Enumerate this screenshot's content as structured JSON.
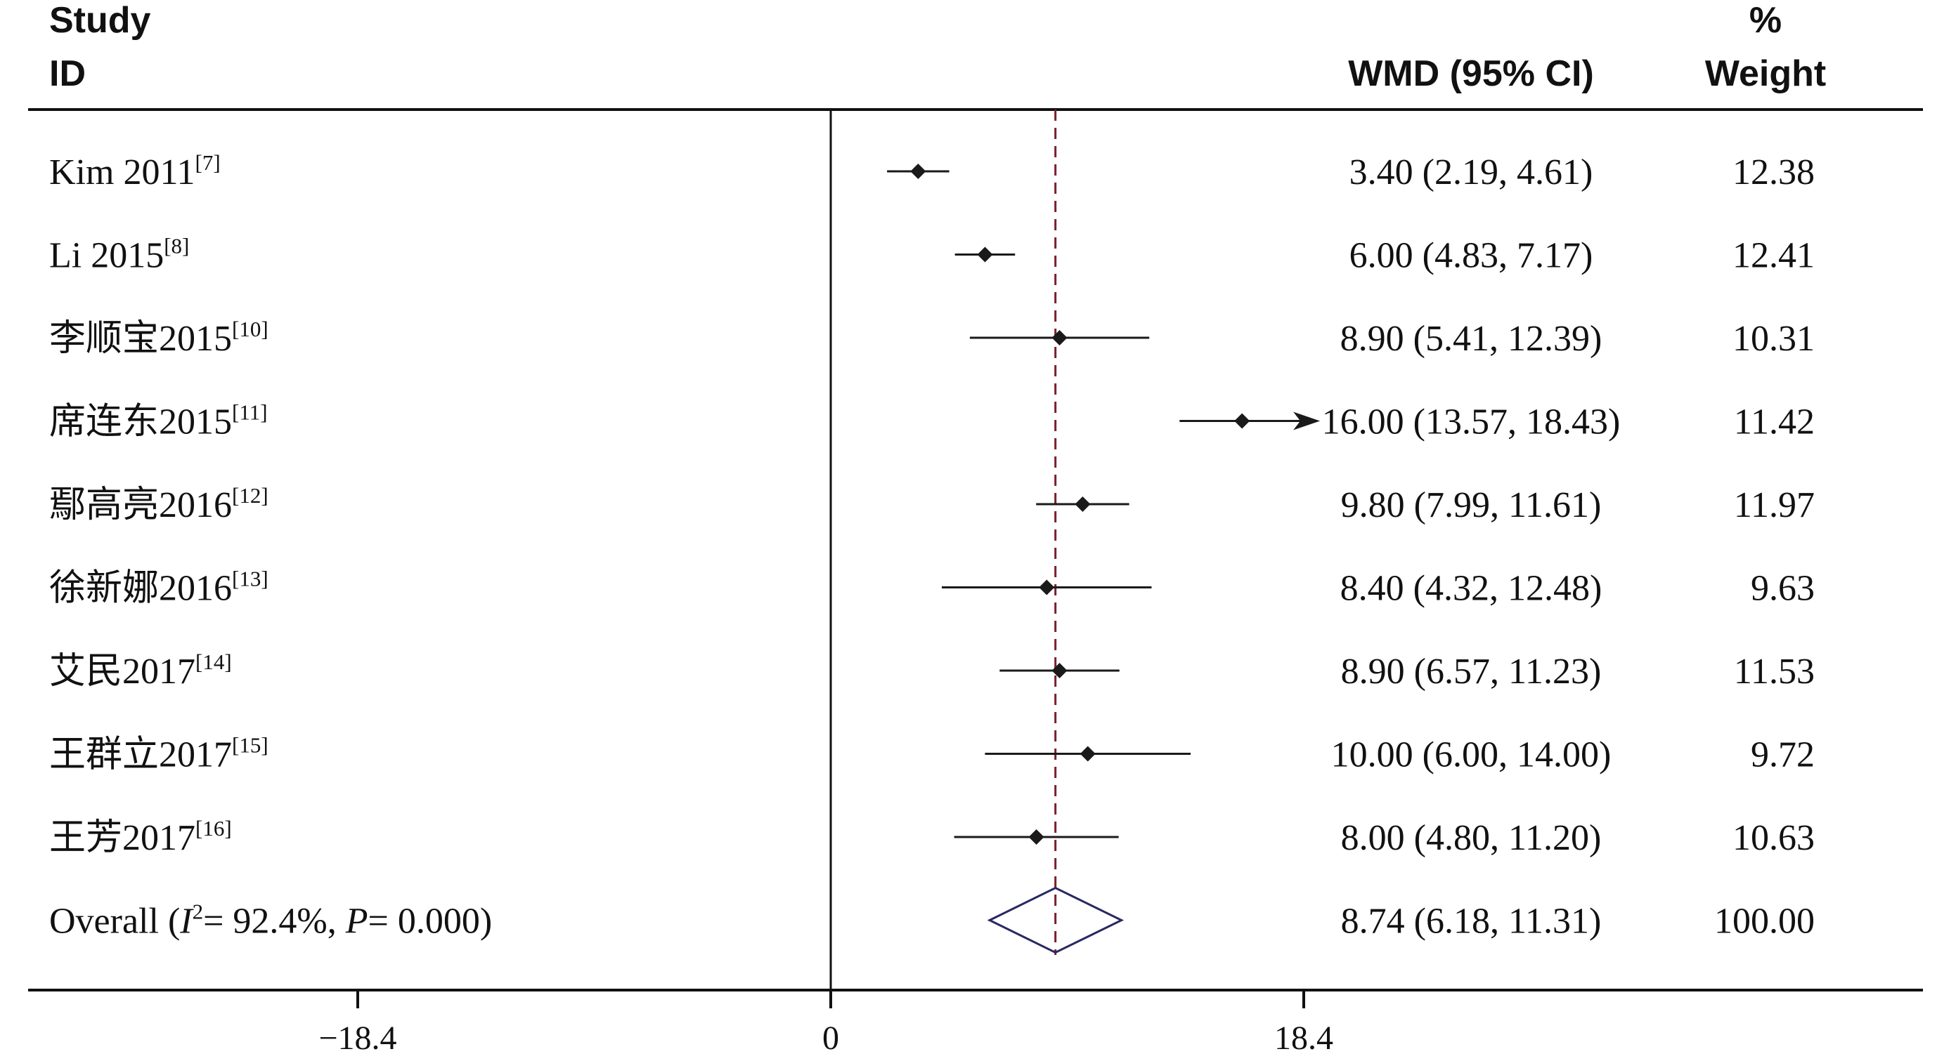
{
  "header": {
    "study": "Study",
    "id": "ID",
    "effect": "WMD (95% CI)",
    "weight_top": "%",
    "weight_bottom": "Weight"
  },
  "chart_data": {
    "type": "forest",
    "xlim": [
      -18.4,
      18.4
    ],
    "x_ticks": [
      "−18.4",
      "0",
      "18.4"
    ],
    "x_tick_values": [
      -18.4,
      0,
      18.4
    ],
    "reference_line": 0,
    "pooled_line": 8.74,
    "colors": {
      "marker": "#1a1a1a",
      "line": "#1a1a1a",
      "diamond": "#2a2860",
      "pooled_line": "#7a1f2b"
    },
    "studies": [
      {
        "name": "Kim 2011",
        "ref": "[7]",
        "est": 3.4,
        "lo": 2.19,
        "hi": 4.61,
        "ci_text": "3.40 (2.19, 4.61)",
        "weight": "12.38"
      },
      {
        "name": "Li 2015",
        "ref": "[8]",
        "est": 6.0,
        "lo": 4.83,
        "hi": 7.17,
        "ci_text": "6.00 (4.83, 7.17)",
        "weight": "12.41"
      },
      {
        "name": "李顺宝2015",
        "ref": "[10]",
        "est": 8.9,
        "lo": 5.41,
        "hi": 12.39,
        "ci_text": "8.90 (5.41, 12.39)",
        "weight": "10.31"
      },
      {
        "name": "席连东2015",
        "ref": "[11]",
        "est": 16.0,
        "lo": 13.57,
        "hi": 18.43,
        "ci_text": "16.00 (13.57, 18.43)",
        "weight": "11.42",
        "arrow": true
      },
      {
        "name": "鄢高亮2016",
        "ref": "[12]",
        "est": 9.8,
        "lo": 7.99,
        "hi": 11.61,
        "ci_text": "9.80 (7.99, 11.61)",
        "weight": "11.97"
      },
      {
        "name": "徐新娜2016",
        "ref": "[13]",
        "est": 8.4,
        "lo": 4.32,
        "hi": 12.48,
        "ci_text": "8.40 (4.32, 12.48)",
        "weight": "9.63"
      },
      {
        "name": "艾民2017",
        "ref": "[14]",
        "est": 8.9,
        "lo": 6.57,
        "hi": 11.23,
        "ci_text": "8.90 (6.57, 11.23)",
        "weight": "11.53"
      },
      {
        "name": "王群立2017",
        "ref": "[15]",
        "est": 10.0,
        "lo": 6.0,
        "hi": 14.0,
        "ci_text": "10.00 (6.00, 14.00)",
        "weight": "9.72"
      },
      {
        "name": "王芳2017",
        "ref": "[16]",
        "est": 8.0,
        "lo": 4.8,
        "hi": 11.2,
        "ci_text": "8.00 (4.80, 11.20)",
        "weight": "10.63"
      }
    ],
    "overall": {
      "label": "Overall",
      "het_i2_symbol": "I",
      "het_i2_sup": "2",
      "het_i2_value": "= 92.4%, ",
      "het_p_symbol": "P",
      "het_p_value": "= 0.000)",
      "est": 8.74,
      "lo": 6.18,
      "hi": 11.31,
      "ci_text": "8.74 (6.18, 11.31)",
      "weight": "100.00"
    }
  }
}
